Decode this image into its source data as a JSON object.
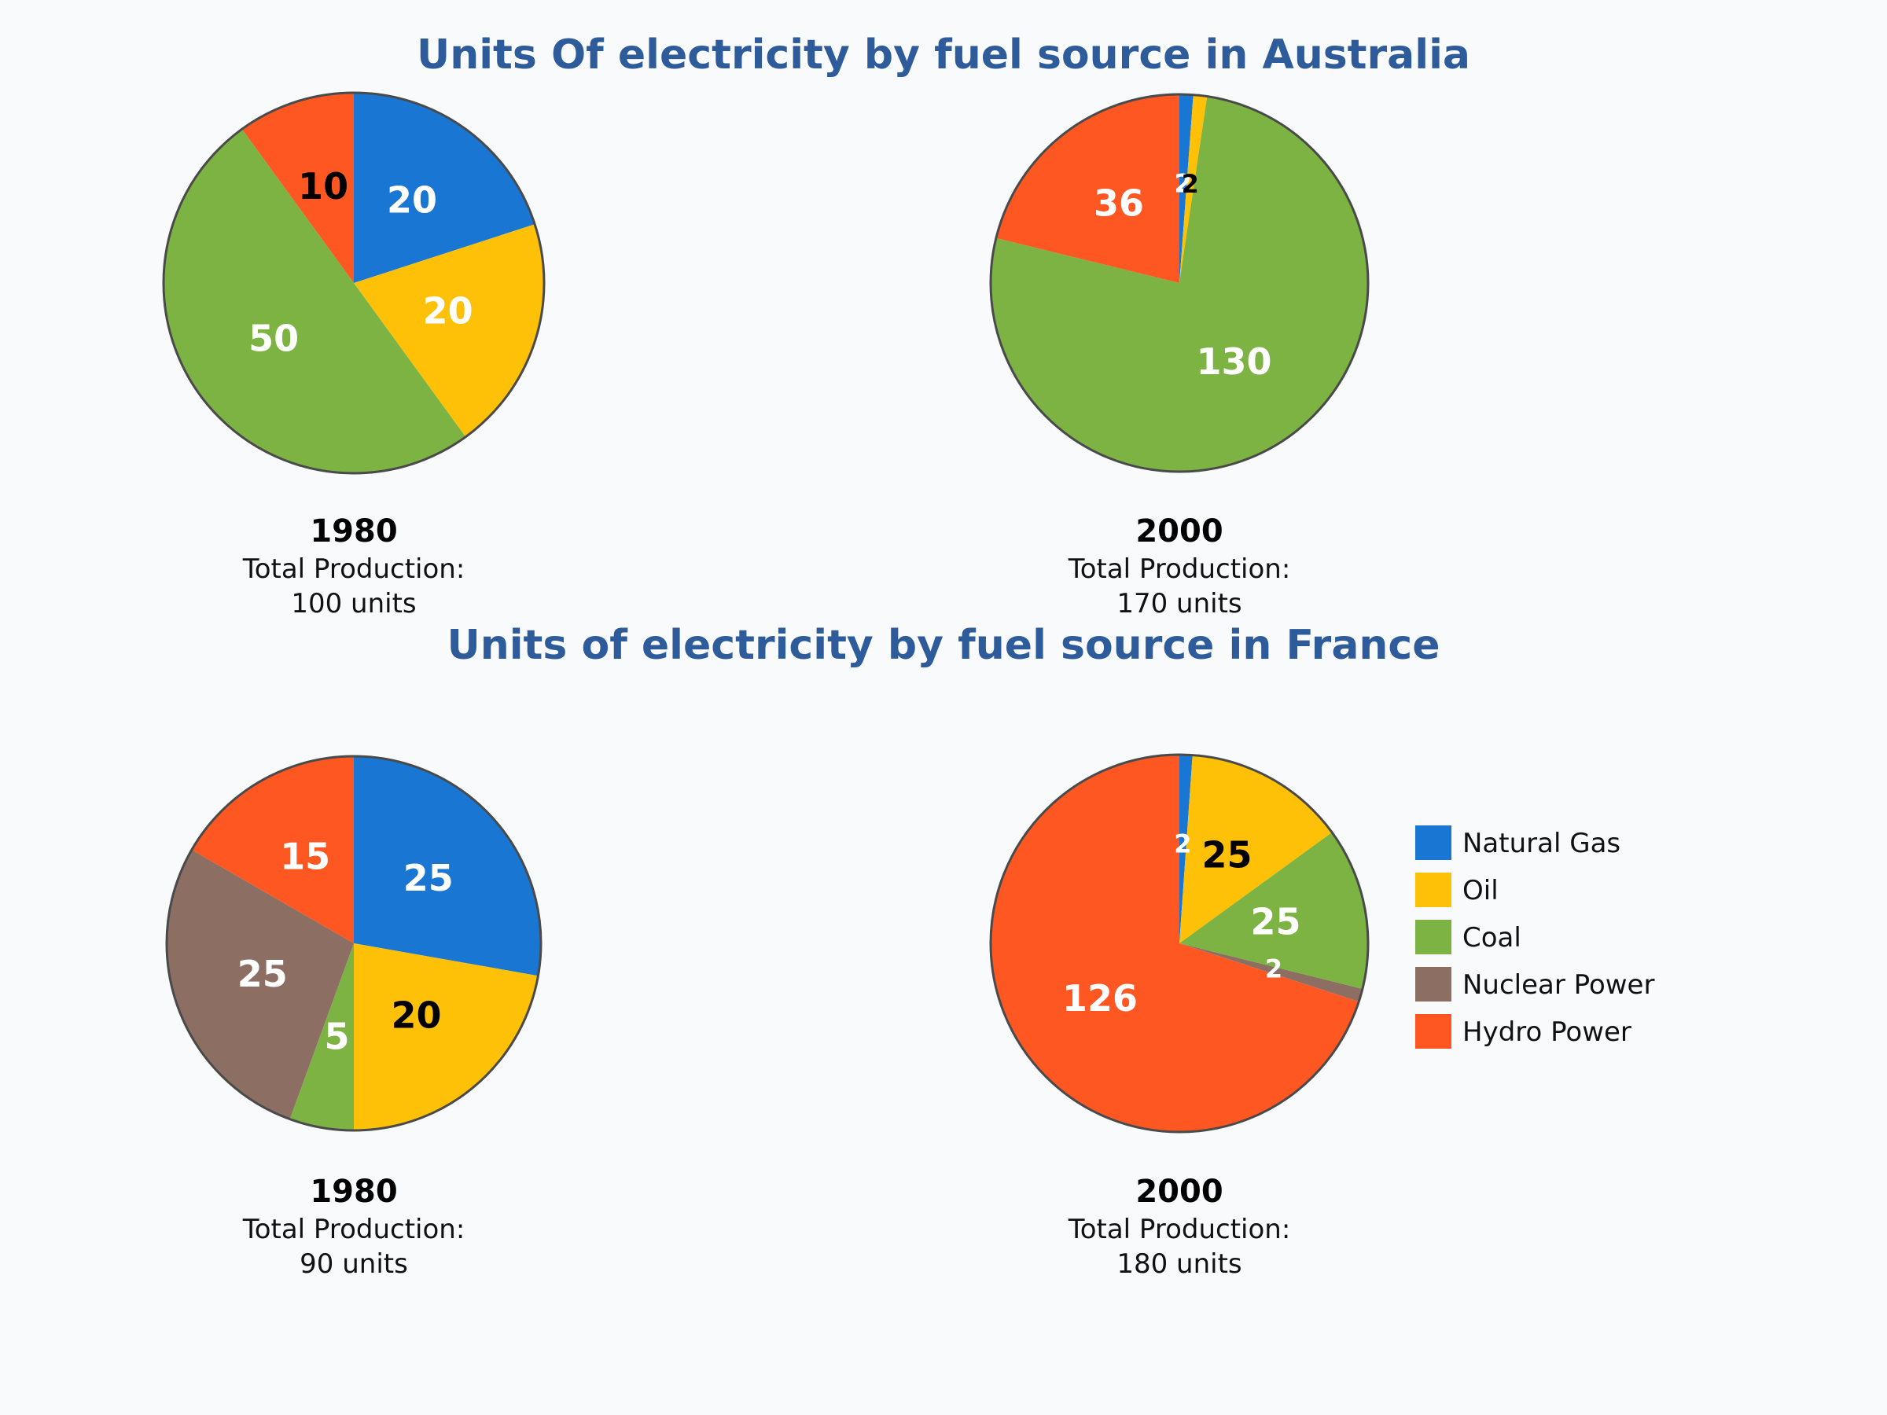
{
  "chart_data": [
    {
      "type": "pie",
      "group_title": "Units Of electricity by fuel source in Australia",
      "title": "1980",
      "total_line1": "Total Production:",
      "total_line2": "100 units",
      "slices": [
        {
          "name": "Natural Gas",
          "value": 20,
          "label": "20",
          "label_color": "#ffffff"
        },
        {
          "name": "Oil",
          "value": 20,
          "label": "20",
          "label_color": "#ffffff"
        },
        {
          "name": "Coal",
          "value": 50,
          "label": "50",
          "label_color": "#ffffff"
        },
        {
          "name": "Nuclear Power",
          "value": 0,
          "label": "",
          "label_color": "#ffffff"
        },
        {
          "name": "Hydro Power",
          "value": 10,
          "label": "10",
          "label_color": "#000000"
        }
      ]
    },
    {
      "type": "pie",
      "group_title": "Units Of electricity by fuel source in Australia",
      "title": "2000",
      "total_line1": "Total Production:",
      "total_line2": "170 units",
      "slices": [
        {
          "name": "Natural Gas",
          "value": 2,
          "label": "2",
          "label_color": "#ffffff"
        },
        {
          "name": "Oil",
          "value": 2,
          "label": "2",
          "label_color": "#000000"
        },
        {
          "name": "Coal",
          "value": 130,
          "label": "130",
          "label_color": "#ffffff"
        },
        {
          "name": "Nuclear Power",
          "value": 0,
          "label": "",
          "label_color": "#ffffff"
        },
        {
          "name": "Hydro Power",
          "value": 36,
          "label": "36",
          "label_color": "#ffffff"
        }
      ]
    },
    {
      "type": "pie",
      "group_title": "Units of electricity by fuel source in France",
      "title": "1980",
      "total_line1": "Total Production:",
      "total_line2": "90 units",
      "slices": [
        {
          "name": "Natural Gas",
          "value": 25,
          "label": "25",
          "label_color": "#ffffff"
        },
        {
          "name": "Oil",
          "value": 20,
          "label": "20",
          "label_color": "#000000"
        },
        {
          "name": "Coal",
          "value": 5,
          "label": "5",
          "label_color": "#ffffff"
        },
        {
          "name": "Nuclear Power",
          "value": 25,
          "label": "25",
          "label_color": "#ffffff"
        },
        {
          "name": "Hydro Power",
          "value": 15,
          "label": "15",
          "label_color": "#ffffff"
        }
      ]
    },
    {
      "type": "pie",
      "group_title": "Units of electricity by fuel source in France",
      "title": "2000",
      "total_line1": "Total Production:",
      "total_line2": "180 units",
      "slices": [
        {
          "name": "Natural Gas",
          "value": 2,
          "label": "2",
          "label_color": "#ffffff"
        },
        {
          "name": "Oil",
          "value": 25,
          "label": "25",
          "label_color": "#000000"
        },
        {
          "name": "Coal",
          "value": 25,
          "label": "25",
          "label_color": "#ffffff"
        },
        {
          "name": "Nuclear Power",
          "value": 2,
          "label": "2",
          "label_color": "#ffffff"
        },
        {
          "name": "Hydro Power",
          "value": 126,
          "label": "126",
          "label_color": "#ffffff"
        }
      ]
    }
  ],
  "titles": {
    "australia": "Units Of electricity by fuel source in Australia",
    "france": "Units of electricity by fuel source in France"
  },
  "legend": {
    "placement": "right",
    "items": [
      {
        "name": "Natural Gas",
        "color": "#1976d2"
      },
      {
        "name": "Oil",
        "color": "#ffc107"
      },
      {
        "name": "Coal",
        "color": "#7cb342"
      },
      {
        "name": "Nuclear Power",
        "color": "#8d6e63"
      },
      {
        "name": "Hydro Power",
        "color": "#ff5722"
      }
    ]
  },
  "colors": {
    "Natural Gas": "#1976d2",
    "Oil": "#ffc107",
    "Coal": "#7cb342",
    "Nuclear Power": "#8d6e63",
    "Hydro Power": "#ff5722",
    "title": "#2e5b9a",
    "background": "#f8fafc"
  }
}
